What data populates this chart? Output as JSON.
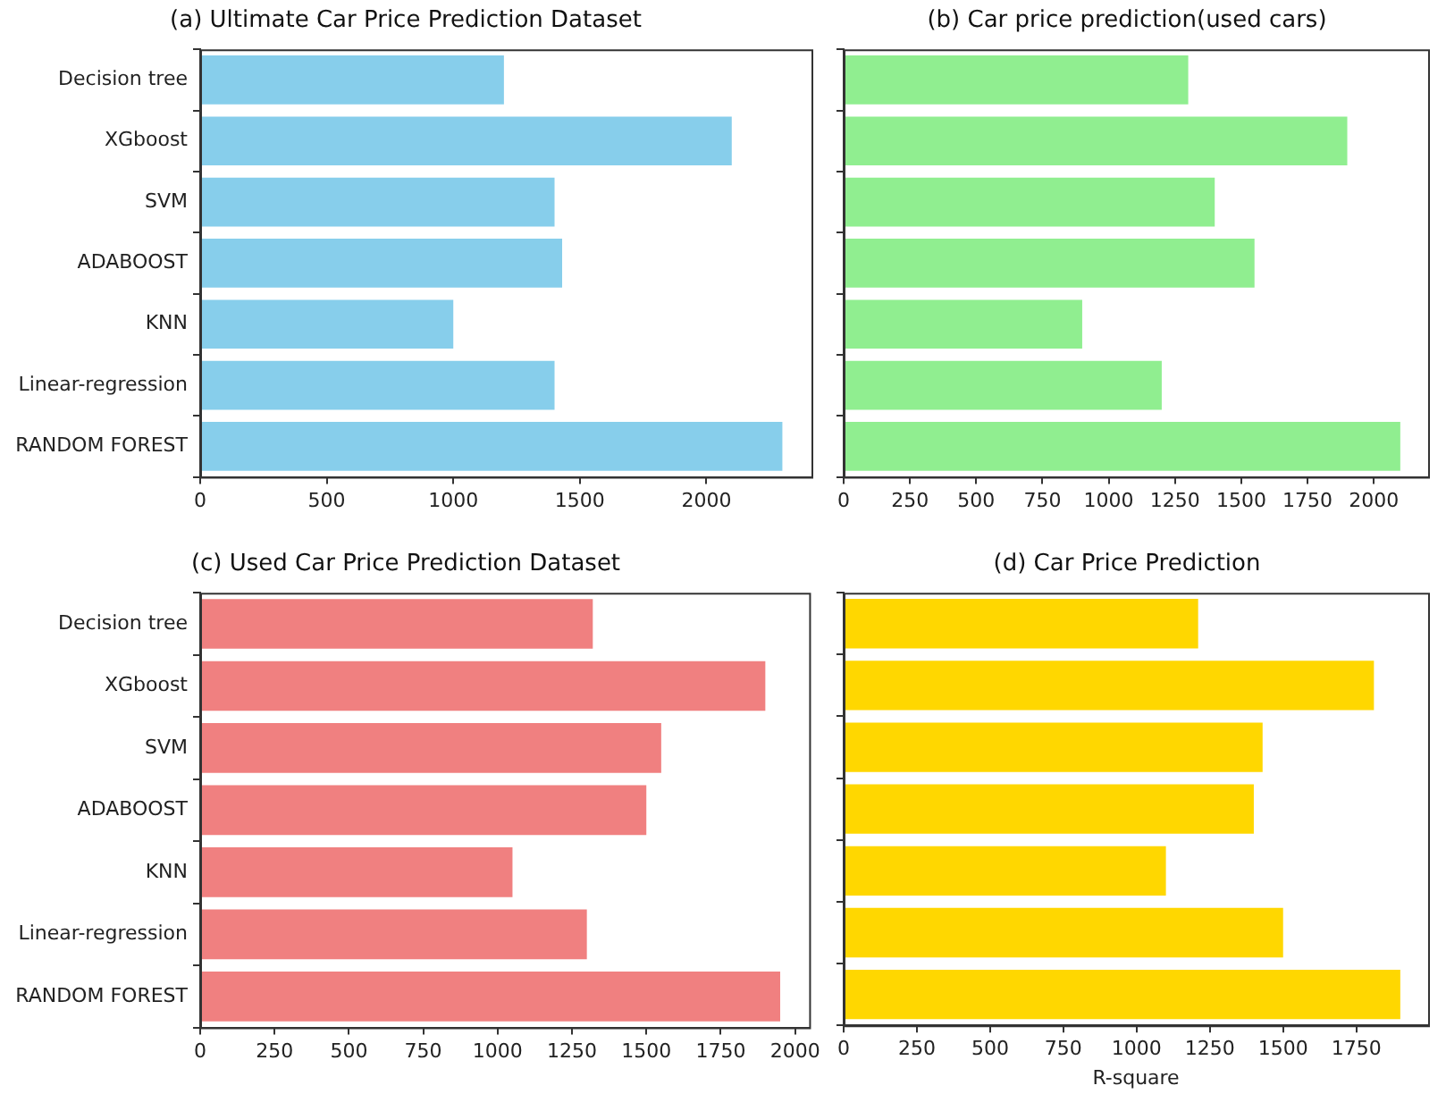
{
  "chart_data": [
    {
      "type": "bar",
      "orientation": "horizontal",
      "title": "(a) Ultimate Car Price Prediction Dataset",
      "categories": [
        "Decision tree",
        "XGboost",
        "SVM",
        "ADABOOST",
        "KNN",
        "Linear-regression",
        "RANDOM FOREST"
      ],
      "values": [
        1200,
        2100,
        1400,
        1430,
        1000,
        1400,
        2300
      ],
      "color": "#87ceeb",
      "xlim": [
        0,
        2415
      ],
      "xticks": [
        0,
        500,
        1000,
        1500,
        2000
      ],
      "grid": false
    },
    {
      "type": "bar",
      "orientation": "horizontal",
      "title": "(b) Car price prediction(used cars)",
      "categories": [
        null,
        null,
        null,
        null,
        null,
        null,
        null
      ],
      "values": [
        1300,
        1900,
        1400,
        1550,
        900,
        1200,
        2100
      ],
      "color": "#90ee90",
      "xlim": [
        0,
        2205
      ],
      "xticks": [
        0,
        250,
        500,
        750,
        1000,
        1250,
        1500,
        1750,
        2000
      ],
      "grid": false,
      "tick_labels": "x"
    },
    {
      "type": "bar",
      "orientation": "horizontal",
      "title": "(c) Used Car Price Prediction Dataset",
      "categories": [
        "Decision tree",
        "XGboost",
        "SVM",
        "ADABOOST",
        "KNN",
        "Linear-regression",
        "RANDOM FOREST"
      ],
      "values": [
        1320,
        1900,
        1550,
        1500,
        1050,
        1300,
        1950
      ],
      "color": "#f08080",
      "xlim": [
        0,
        2047.5
      ],
      "xticks": [
        0,
        250,
        500,
        750,
        1000,
        1250,
        1500,
        1750,
        2000
      ],
      "grid": false
    },
    {
      "type": "bar",
      "orientation": "horizontal",
      "title": "(d) Car Price Prediction",
      "xlabel": "R-square",
      "categories": [
        null,
        null,
        null,
        null,
        null,
        null,
        null
      ],
      "values": [
        1210,
        1810,
        1430,
        1400,
        1100,
        1500,
        1900
      ],
      "color": "#ffd700",
      "xlim": [
        0,
        1995
      ],
      "xticks": [
        0,
        250,
        500,
        750,
        1000,
        1250,
        1500,
        1750
      ],
      "grid": false,
      "tick_labels": "x"
    }
  ]
}
